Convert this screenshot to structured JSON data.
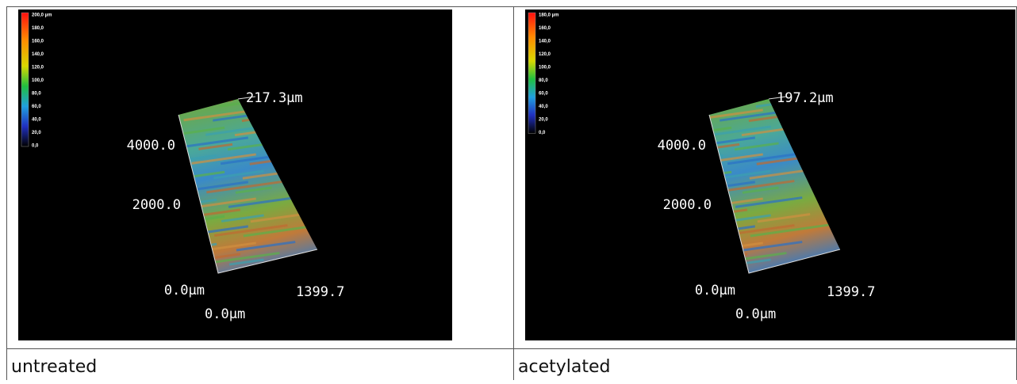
{
  "panels": [
    {
      "colorbar": [
        "200,0 µm",
        "180,0",
        "160,0",
        "140,0",
        "120,0",
        "100,0",
        "80,0",
        "60,0",
        "40,0",
        "20,0",
        "0,0"
      ],
      "z_max": "217.3µm",
      "y_tick_upper": "4000.0",
      "y_tick_lower": "2000.0",
      "origin_y": "0.0µm",
      "x_end": "1399.7",
      "origin_x": "0.0µm",
      "caption": "untreated"
    },
    {
      "colorbar": [
        "180,0 µm",
        "160,0",
        "140,0",
        "120,0",
        "100,0",
        "80,0",
        "60,0",
        "40,0",
        "20,0",
        "0,0"
      ],
      "z_max": "197.2µm",
      "y_tick_upper": "4000.0",
      "y_tick_lower": "2000.0",
      "origin_y": "0.0µm",
      "x_end": "1399.7",
      "origin_x": "0.0µm",
      "caption": "acetylated"
    }
  ]
}
